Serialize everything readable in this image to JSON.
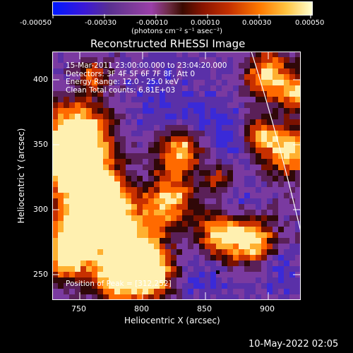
{
  "colorbar": {
    "tick_labels": [
      "-0.00050",
      "-0.00030",
      "-0.00010",
      "0.00010",
      "0.00030",
      "0.00050"
    ],
    "units_text": "(photons cm⁻² s⁻¹ asec⁻²)"
  },
  "plot": {
    "title": "Reconstructed RHESSI Image",
    "xlabel": "Heliocentric X (arcsec)",
    "ylabel": "Heliocentric Y (arcsec)",
    "x_ticks": [
      "750",
      "800",
      "850",
      "900"
    ],
    "y_ticks": [
      "400",
      "350",
      "300",
      "250"
    ],
    "xlim": [
      730,
      922
    ],
    "ylim": [
      227,
      422
    ],
    "overlay_lines": [
      "15-Mar-2011 23:00:00.000 to 23:04:20.000",
      "Detectors: 3F 4F 5F 6F 7F 8F, Att 0",
      "Energy Range: 12.0 - 25.0 keV",
      "Clean     Total counts: 6.81E+03"
    ],
    "peak_label": "Position of Peak = [312,252]"
  },
  "footer": {
    "timestamp": "10-May-2022 02:05"
  }
}
